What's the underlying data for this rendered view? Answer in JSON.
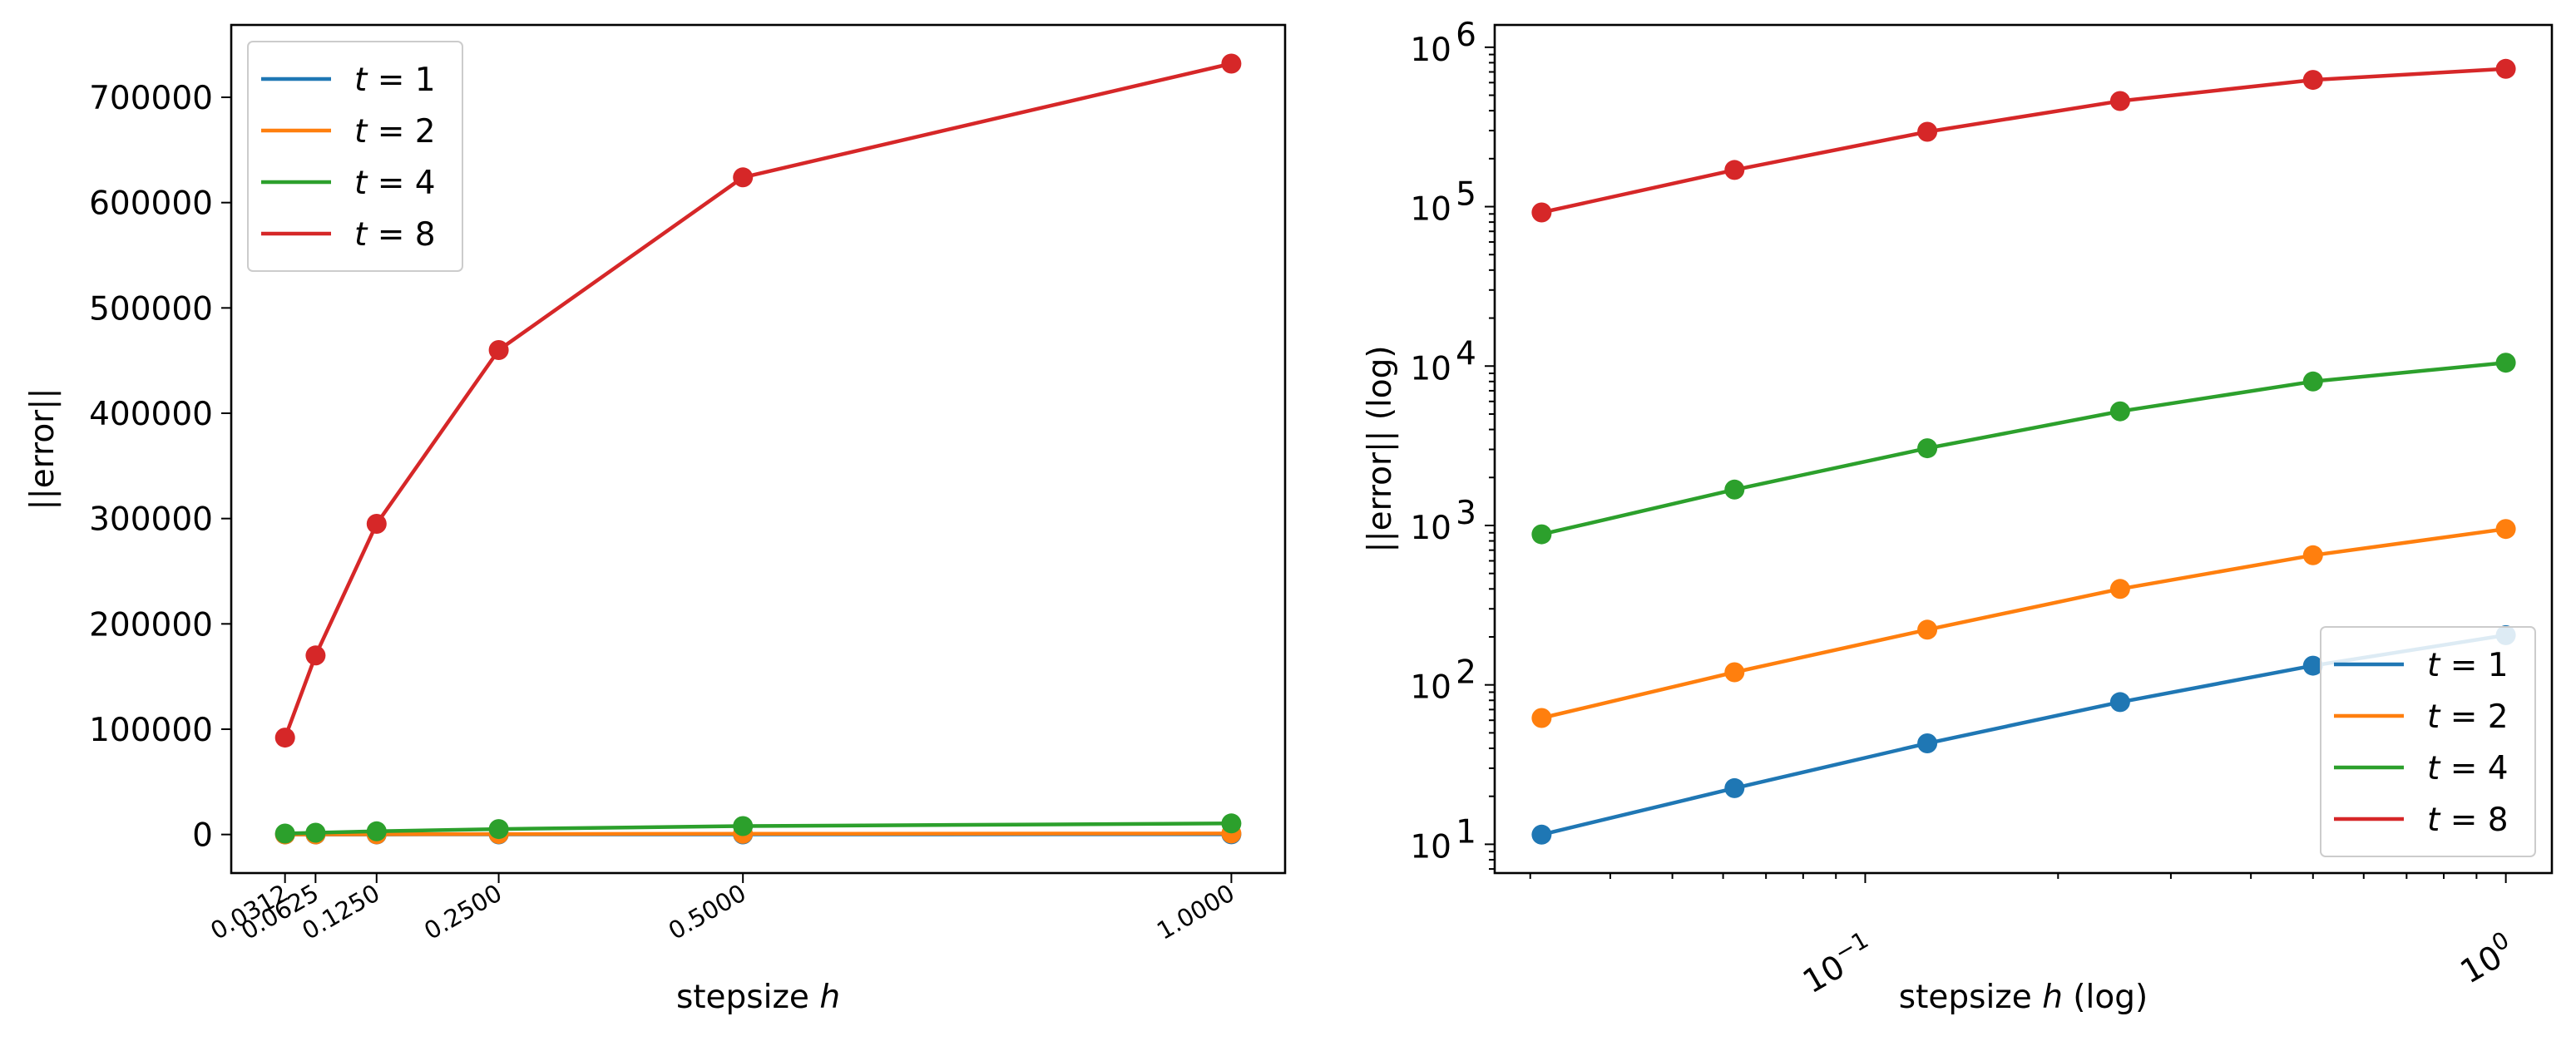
{
  "chart_data": [
    {
      "type": "line",
      "title": "",
      "xlabel_prefix": "stepsize ",
      "xlabel_var": "h",
      "xlabel_suffix": "",
      "ylabel": "||error||",
      "xscale": "linear",
      "yscale": "linear",
      "xlim": [
        -0.0238,
        1.055
      ],
      "ylim": [
        -36600,
        768700
      ],
      "grid": false,
      "legend_position": "upper left",
      "x": [
        0.03125,
        0.0625,
        0.125,
        0.25,
        0.5,
        1.0
      ],
      "x_tick_labels": [
        "0.0312",
        "0.0625",
        "0.1250",
        "0.2500",
        "0.5000",
        "1.0000"
      ],
      "y_ticks": [
        0,
        100000,
        200000,
        300000,
        400000,
        500000,
        600000,
        700000
      ],
      "y_tick_labels": [
        "0",
        "100000",
        "200000",
        "300000",
        "400000",
        "500000",
        "600000",
        "700000"
      ],
      "series": [
        {
          "name": "t = 1",
          "var": "t",
          "label_rest": " = 1",
          "color": "#1f77b4",
          "values": [
            11.5,
            22.5,
            43,
            78,
            132,
            205
          ]
        },
        {
          "name": "t = 2",
          "var": "t",
          "label_rest": " = 2",
          "color": "#ff7f0e",
          "values": [
            62,
            120,
            222,
            400,
            650,
            950
          ]
        },
        {
          "name": "t = 4",
          "var": "t",
          "label_rest": " = 4",
          "color": "#2ca02c",
          "values": [
            880,
            1680,
            3050,
            5200,
            8000,
            10500
          ]
        },
        {
          "name": "t = 8",
          "var": "t",
          "label_rest": " = 8",
          "color": "#d62728",
          "values": [
            92000,
            170000,
            295000,
            460000,
            624000,
            732000
          ]
        }
      ]
    },
    {
      "type": "line",
      "title": "",
      "xlabel_prefix": "stepsize ",
      "xlabel_var": "h",
      "xlabel_suffix": " (log)",
      "ylabel": "||error|| (log)",
      "xscale": "log",
      "yscale": "log",
      "xlim": [
        0.0264,
        1.18
      ],
      "ylim": [
        6.6,
        1380000
      ],
      "grid": false,
      "legend_position": "lower right",
      "x": [
        0.03125,
        0.0625,
        0.125,
        0.25,
        0.5,
        1.0
      ],
      "x_major_ticks": [
        0.1,
        1
      ],
      "x_major_labels": [
        {
          "base": "10",
          "exp": "−1"
        },
        {
          "base": "10",
          "exp": "0"
        }
      ],
      "y_major_ticks": [
        10,
        100,
        1000,
        10000,
        100000,
        1000000
      ],
      "y_major_labels": [
        {
          "base": "10",
          "exp": "1"
        },
        {
          "base": "10",
          "exp": "2"
        },
        {
          "base": "10",
          "exp": "3"
        },
        {
          "base": "10",
          "exp": "4"
        },
        {
          "base": "10",
          "exp": "5"
        },
        {
          "base": "10",
          "exp": "6"
        }
      ],
      "series": [
        {
          "name": "t = 1",
          "var": "t",
          "label_rest": " = 1",
          "color": "#1f77b4",
          "values": [
            11.5,
            22.5,
            43,
            78,
            132,
            205
          ]
        },
        {
          "name": "t = 2",
          "var": "t",
          "label_rest": " = 2",
          "color": "#ff7f0e",
          "values": [
            62,
            120,
            222,
            400,
            650,
            950
          ]
        },
        {
          "name": "t = 4",
          "var": "t",
          "label_rest": " = 4",
          "color": "#2ca02c",
          "values": [
            880,
            1680,
            3050,
            5200,
            8000,
            10500
          ]
        },
        {
          "name": "t = 8",
          "var": "t",
          "label_rest": " = 8",
          "color": "#d62728",
          "values": [
            92000,
            170000,
            295000,
            460000,
            624000,
            732000
          ]
        }
      ]
    }
  ]
}
